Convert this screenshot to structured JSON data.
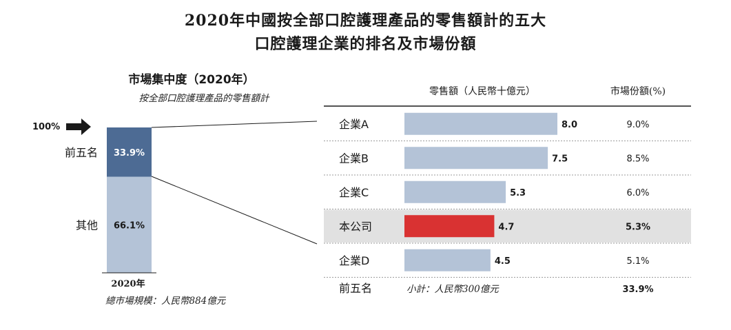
{
  "title_line1": "2020年中國按全部口腔護理產品的零售額計的五大",
  "title_line2": "口腔護理企業的排名及市場份額",
  "left_panel": {
    "heading": "市場集中度（2020年）",
    "subheading": "按全部口腔護理產品的零售額計",
    "arrow_label": "100%",
    "x_label": "2020年",
    "footnote": "總市場規模：人民幣884億元"
  },
  "right_panel": {
    "col_header_sales": "零售額（人民幣十億元）",
    "col_header_share": "市場份額(%)",
    "total_row": {
      "label": "前五名",
      "subtotal": "小計：人民幣300億元",
      "share": "33.9%"
    }
  },
  "chart_data": [
    {
      "type": "bar",
      "stacked": true,
      "title": "市場集中度（2020年）",
      "subtitle": "按全部口腔護理產品的零售額計",
      "categories": [
        "2020年"
      ],
      "series": [
        {
          "name": "前五名",
          "values": [
            33.9
          ],
          "label": "33.9%",
          "color": "#4d6b94"
        },
        {
          "name": "其他",
          "values": [
            66.1
          ],
          "label": "66.1%",
          "color": "#b4c3d7"
        }
      ],
      "ylim": [
        0,
        100
      ],
      "total_market_size": "總市場規模：人民幣884億元"
    },
    {
      "type": "bar",
      "orientation": "horizontal",
      "xlabel": "零售額（人民幣十億元）",
      "categories": [
        "企業A",
        "企業B",
        "企業C",
        "本公司",
        "企業D"
      ],
      "values": [
        8.0,
        7.5,
        5.3,
        4.7,
        4.5
      ],
      "value_labels": [
        "8.0",
        "7.5",
        "5.3",
        "4.7",
        "4.5"
      ],
      "market_share": [
        "9.0%",
        "8.5%",
        "6.0%",
        "5.3%",
        "5.1%"
      ],
      "highlight": "本公司",
      "colors": {
        "default": "#b4c3d7",
        "highlight": "#d93232",
        "row_highlight_bg": "#e1e1e1"
      },
      "xlim": [
        0,
        8.0
      ]
    }
  ]
}
